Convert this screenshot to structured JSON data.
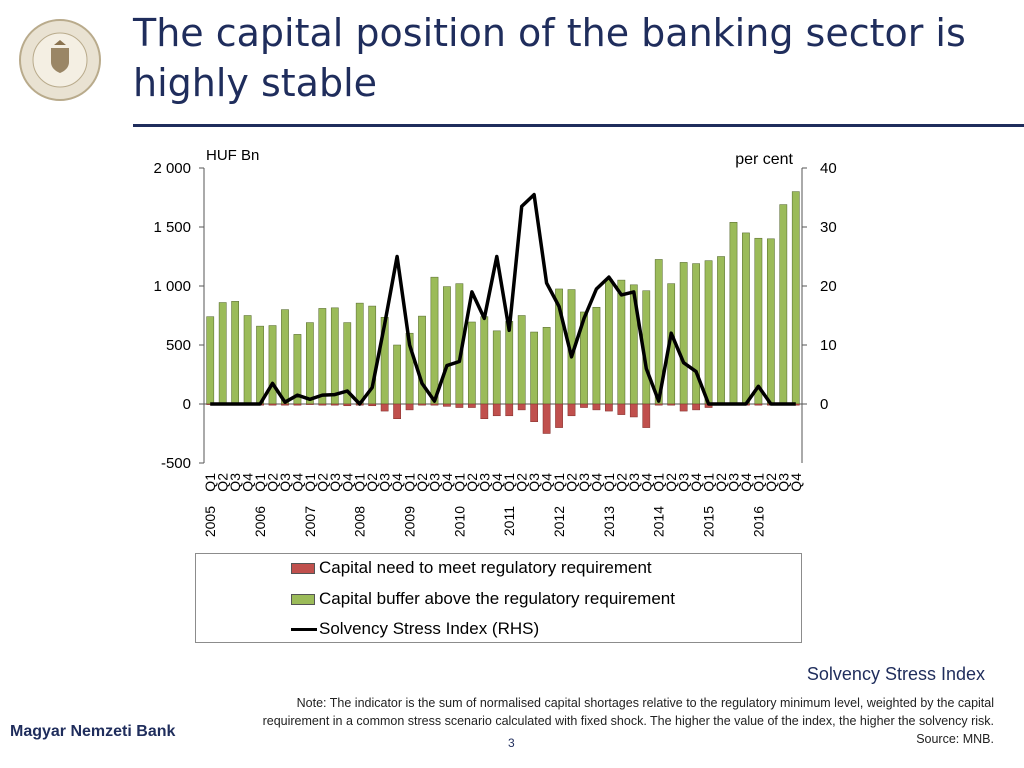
{
  "header": {
    "title": "The capital position of the banking sector is highly stable",
    "logo_text": "MAGYAR NEMZETI BANK"
  },
  "chart_data": {
    "type": "bar",
    "left_axis_label": "HUF Bn",
    "right_axis_label": "per cent",
    "left_ylim": [
      -500,
      2000
    ],
    "left_ticks": [
      2000,
      1500,
      1000,
      500,
      0,
      -500
    ],
    "left_tick_labels": [
      "2 000",
      "1 500",
      "1 000",
      "500",
      "0",
      "-500"
    ],
    "right_ylim": [
      -10,
      40
    ],
    "right_ticks": [
      40,
      30,
      20,
      10,
      0
    ],
    "right_tick_labels": [
      "40",
      "30",
      "20",
      "10",
      "0"
    ],
    "quarters": [
      "Q1",
      "Q2",
      "Q3",
      "Q4"
    ],
    "years": [
      "2005",
      "2006",
      "2007",
      "2008",
      "2009",
      "2010",
      "2011",
      "2012",
      "2013",
      "2014",
      "2015",
      "2016"
    ],
    "series": [
      {
        "name": "Capital need to meet regulatory requirement",
        "kind": "bar",
        "color": "#c0504d",
        "values": [
          -5,
          -5,
          -5,
          -5,
          -10,
          -10,
          -10,
          -10,
          -5,
          -10,
          -10,
          -15,
          -10,
          -15,
          -60,
          -125,
          -50,
          -10,
          -10,
          -20,
          -30,
          -30,
          -125,
          -100,
          -100,
          -50,
          -150,
          -250,
          -200,
          -100,
          -30,
          -50,
          -60,
          -90,
          -110,
          -200,
          -10,
          -10,
          -60,
          -50,
          -30,
          -10,
          -10,
          -10,
          -10,
          -10,
          -10,
          -10
        ]
      },
      {
        "name": "Capital buffer above the regulatory requirement",
        "kind": "bar",
        "color": "#9bbb59",
        "values": [
          740,
          860,
          870,
          750,
          660,
          665,
          800,
          590,
          690,
          810,
          815,
          690,
          855,
          830,
          735,
          500,
          600,
          745,
          1075,
          995,
          1020,
          695,
          740,
          620,
          700,
          750,
          610,
          650,
          975,
          970,
          780,
          820,
          1055,
          1050,
          1010,
          960,
          1225,
          1020,
          1200,
          1190,
          1215,
          1250,
          1540,
          1450,
          1405,
          1400,
          1690,
          1800
        ]
      },
      {
        "name": "Solvency Stress Index (RHS)",
        "kind": "line",
        "color": "#000000",
        "values": [
          0,
          0,
          0,
          0,
          0,
          3.5,
          0.3,
          1.5,
          0.8,
          1.5,
          1.6,
          2.2,
          0,
          2.8,
          13.5,
          25,
          10,
          3.5,
          0.5,
          6.5,
          7.2,
          19,
          14.5,
          25,
          12.5,
          33.5,
          35.5,
          20.5,
          16.5,
          8,
          14.5,
          19.5,
          21.5,
          18.5,
          19,
          6,
          0.5,
          12,
          7,
          5.5,
          0,
          0,
          0,
          0,
          3,
          0,
          0,
          0
        ]
      }
    ],
    "legend_placement": "bottom",
    "grid": false
  },
  "legend": [
    {
      "label": "Capital need to meet regulatory requirement",
      "color": "#c0504d",
      "kind": "bar"
    },
    {
      "label": "Capital buffer above the regulatory requirement",
      "color": "#9bbb59",
      "kind": "bar"
    },
    {
      "label": "Solvency Stress Index (RHS)",
      "color": "#000000",
      "kind": "line"
    }
  ],
  "caption": "Solvency Stress Index",
  "note": "Note: The indicator is the sum of normalised capital shortages relative to the regulatory minimum level, weighted by the capital requirement in a common stress scenario calculated with fixed shock. The higher the value of the index, the higher the solvency risk. Source: MNB.",
  "footer": {
    "bank": "Magyar Nemzeti Bank",
    "page": "3"
  }
}
